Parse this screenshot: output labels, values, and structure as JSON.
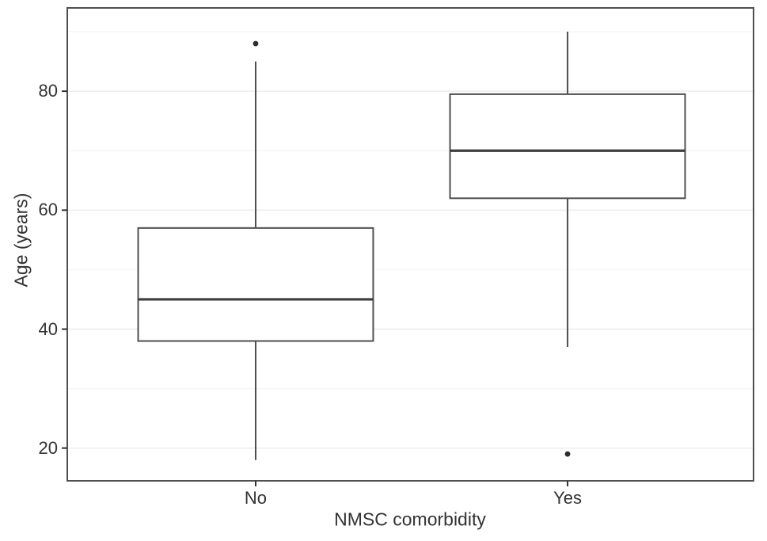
{
  "chart_data": {
    "type": "boxplot",
    "title": "",
    "xlabel": "NMSC comorbidity",
    "ylabel": "Age (years)",
    "categories": [
      "No",
      "Yes"
    ],
    "boxes": [
      {
        "category": "No",
        "whisker_low": 18,
        "q1": 38,
        "median": 45,
        "q3": 57,
        "whisker_high": 85,
        "outliers": [
          88
        ]
      },
      {
        "category": "Yes",
        "whisker_low": 37,
        "q1": 62,
        "median": 70,
        "q3": 79.5,
        "whisker_high": 90,
        "outliers": [
          19
        ]
      }
    ],
    "y_ticks": [
      20,
      40,
      60,
      80
    ],
    "y_minor_gridlines": [
      30,
      50,
      70,
      90
    ],
    "ylim": [
      14.5,
      94
    ],
    "grid": "horizontal-only",
    "legend": "none"
  },
  "colors": {
    "background": "#ffffff",
    "box_fill": "#ffffff",
    "box_stroke": "#4f4f4f",
    "median": "#3d3d3d",
    "whisker": "#4f4f4f",
    "outlier": "#2e2e2e",
    "panel_border": "#4f4f4f",
    "grid_major": "#ededed",
    "grid_minor": "#f6f6f6",
    "tick": "#333333",
    "text": "#333333"
  }
}
